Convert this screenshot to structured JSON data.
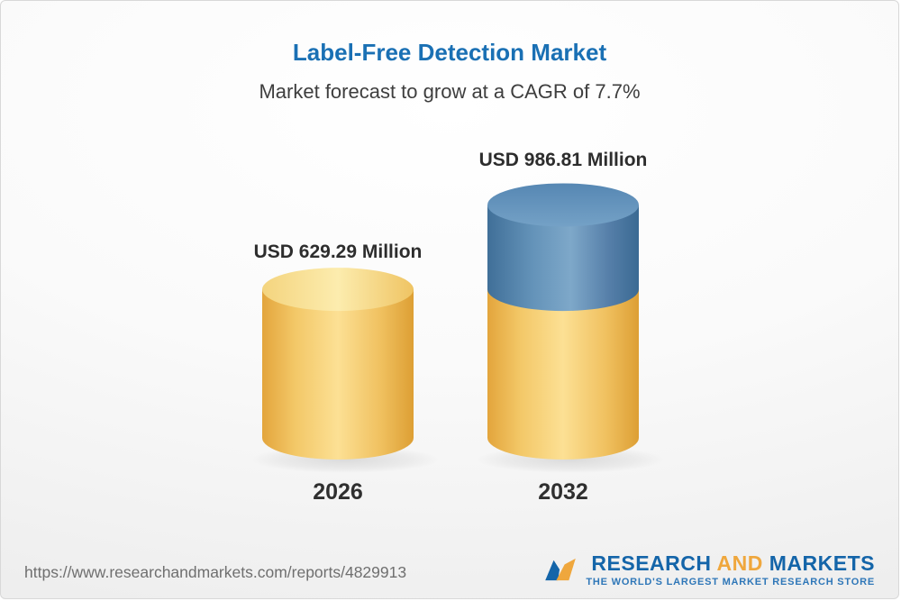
{
  "header": {
    "title": "Label-Free Detection Market",
    "subtitle": "Market forecast to grow at a CAGR of 7.7%"
  },
  "chart_data": {
    "type": "bar",
    "variant": "3d-cylinder",
    "title": "Label-Free Detection Market",
    "subtitle": "Market forecast to grow at a CAGR of 7.7%",
    "unit": "USD Million",
    "cagr_percent": 7.7,
    "categories": [
      "2026",
      "2032"
    ],
    "totals": [
      629.29,
      986.81
    ],
    "series": [
      {
        "name": "base-value",
        "color": "#f2c55e",
        "values": [
          629.29,
          629.29
        ]
      },
      {
        "name": "growth-to-forecast",
        "color": "#6495bc",
        "values": [
          0,
          357.52
        ]
      }
    ],
    "bar_labels": [
      "USD 629.29 Million",
      "USD 986.81 Million"
    ],
    "legend": "none",
    "grid": false,
    "axes": "none"
  },
  "footer": {
    "url": "https://www.researchandmarkets.com/reports/4829913",
    "logo": {
      "line_research": "RESEARCH",
      "line_and": "AND",
      "line_markets": "MARKETS",
      "tagline": "THE WORLD'S LARGEST MARKET RESEARCH STORE"
    }
  },
  "colors": {
    "title_blue": "#1a70b4",
    "subtitle_gray": "#3e3e3e",
    "cylinder_gold": "#f2c55e",
    "cylinder_blue": "#6495bc",
    "logo_blue": "#1465a9",
    "logo_gold": "#efa73d",
    "tagline_blue": "#2f77b8",
    "url_gray": "#6f6f6f"
  }
}
